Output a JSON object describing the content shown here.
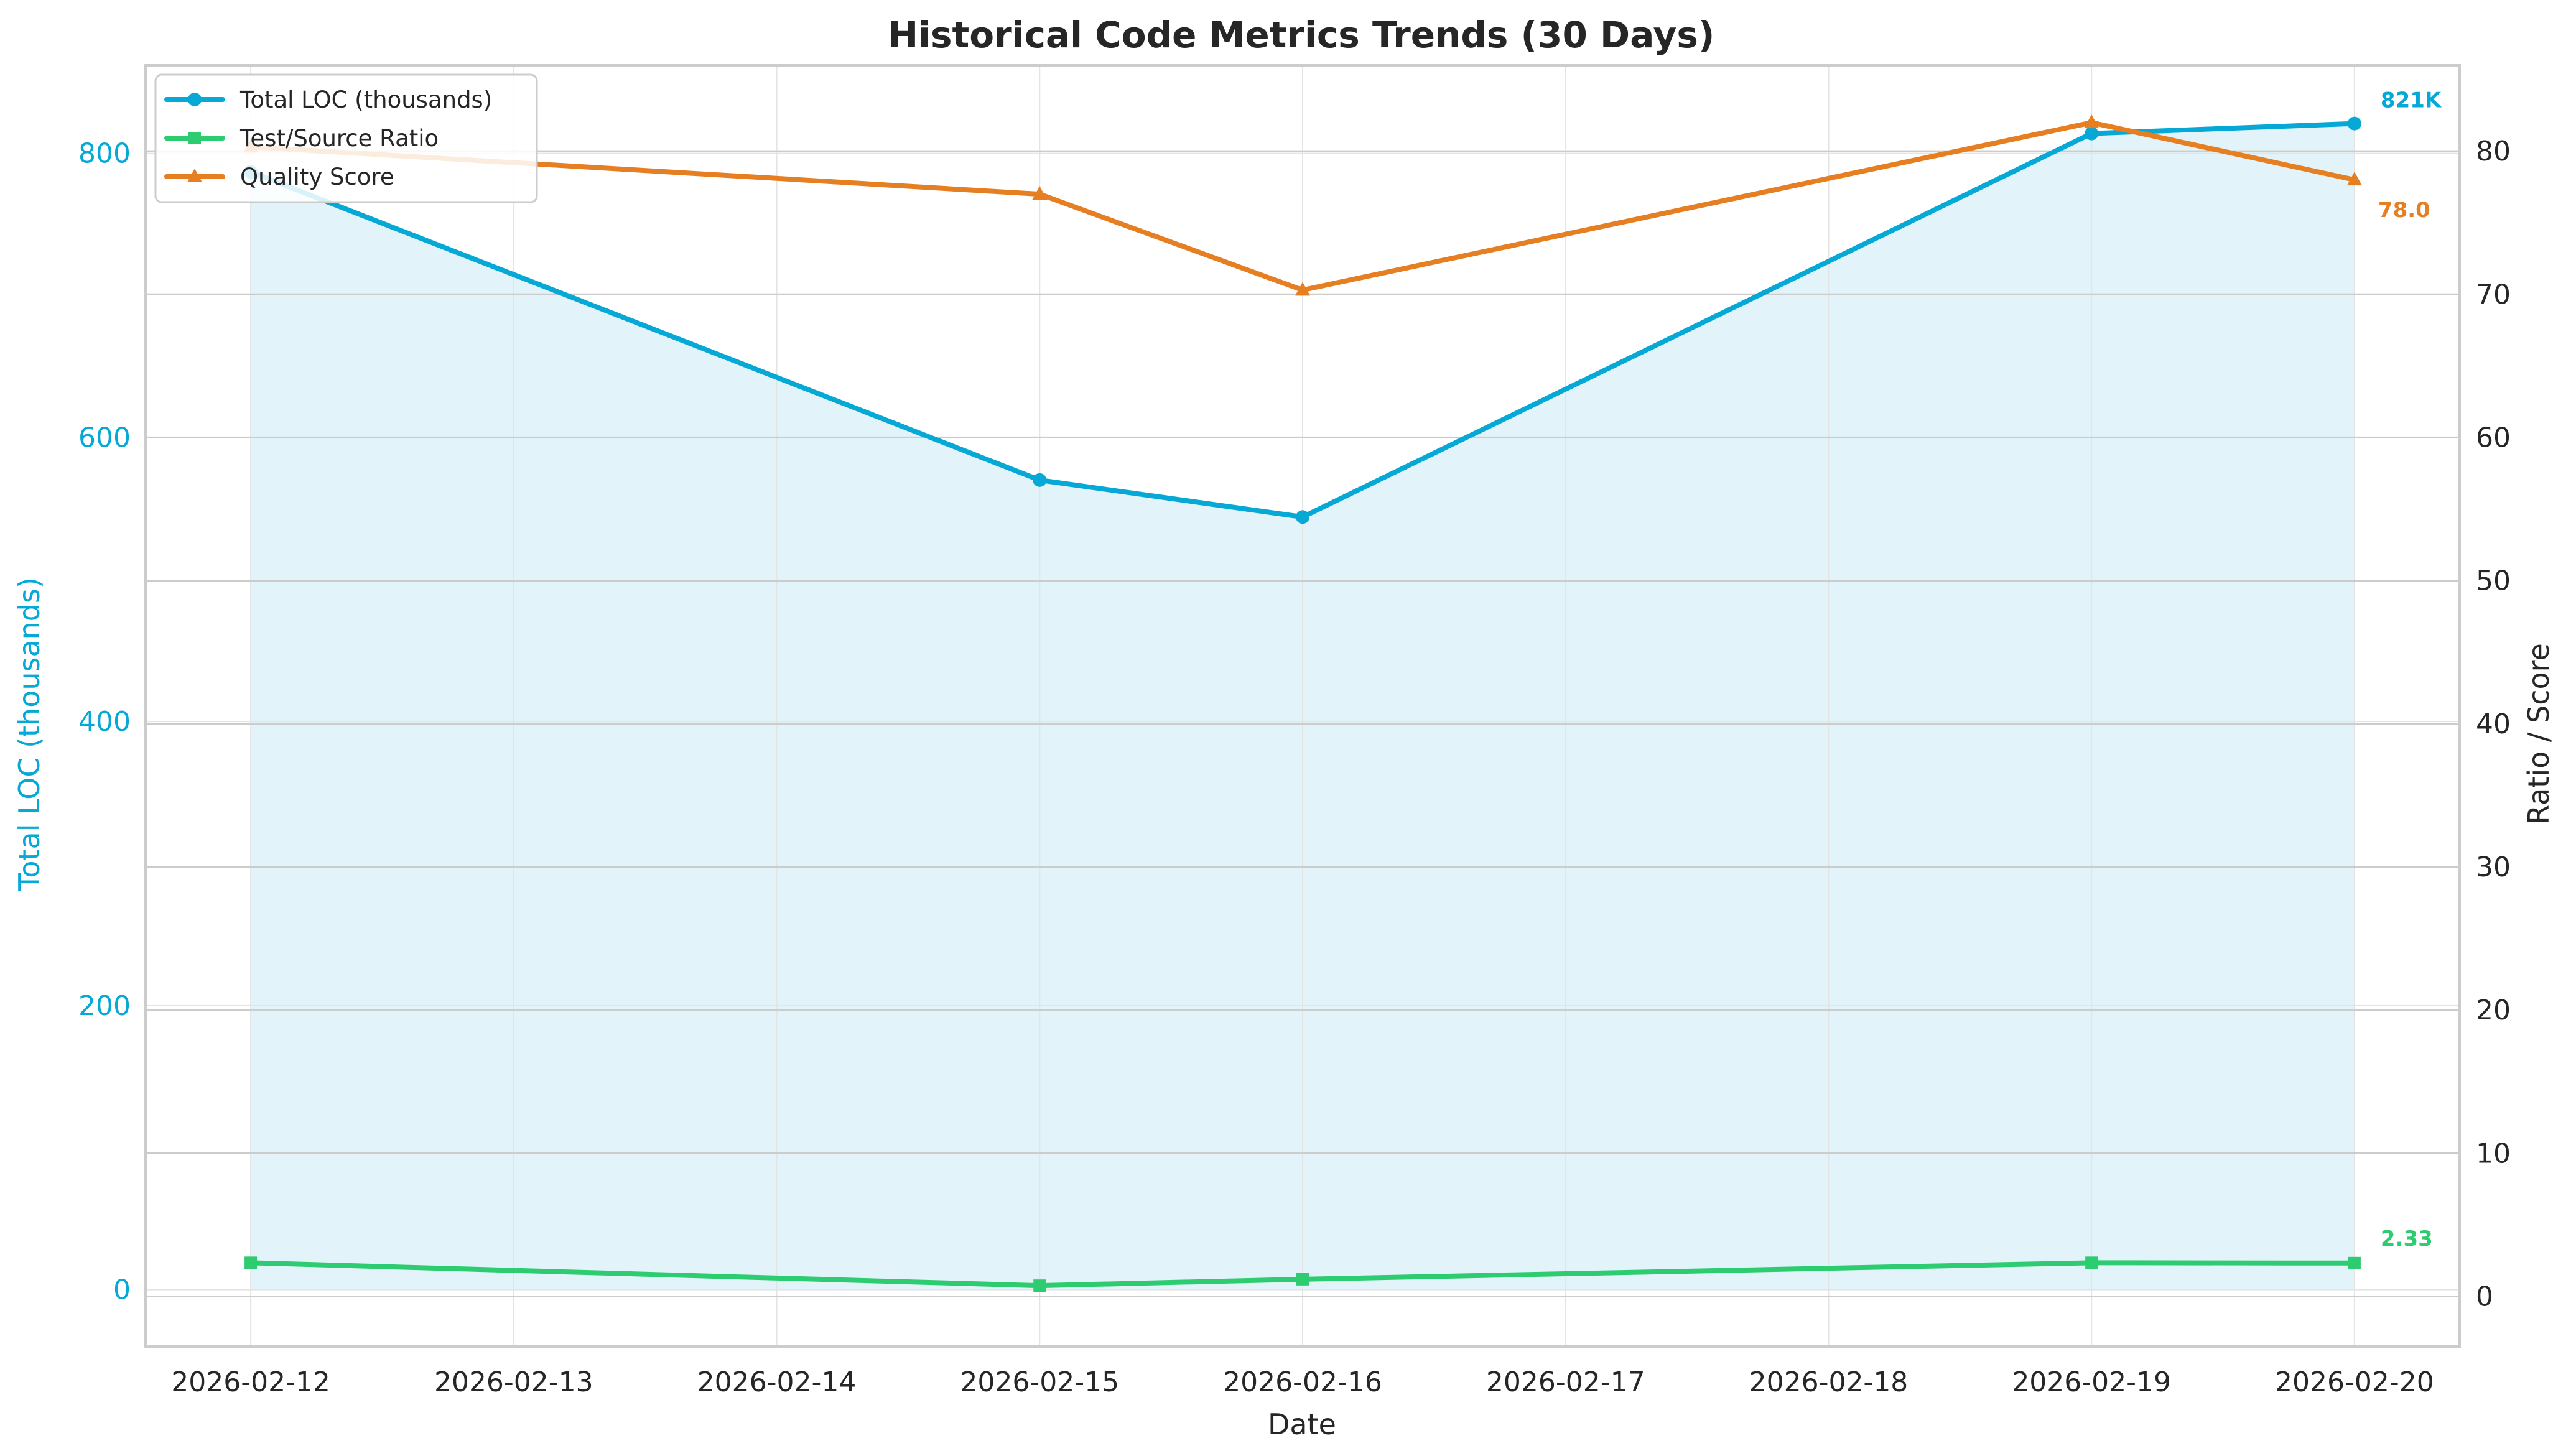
{
  "chart_data": {
    "type": "line",
    "title": "Historical Code Metrics Trends (30 Days)",
    "xlabel": "Date",
    "ylabel_left": "Total LOC (thousands)",
    "ylabel_right": "Ratio / Score",
    "x_ticks": [
      "2026-02-12",
      "2026-02-13",
      "2026-02-14",
      "2026-02-15",
      "2026-02-16",
      "2026-02-17",
      "2026-02-18",
      "2026-02-19",
      "2026-02-20"
    ],
    "x_range": [
      -0.4,
      8.4
    ],
    "ylim_left": [
      -40,
      862
    ],
    "yticks_left": [
      0,
      200,
      400,
      600,
      800
    ],
    "ylim_right": [
      -3.5,
      86
    ],
    "yticks_right": [
      0,
      10,
      20,
      30,
      40,
      50,
      60,
      70,
      80
    ],
    "grid": true,
    "legend_position": "top-left",
    "series": [
      {
        "name": "Total LOC (thousands)",
        "axis": "left",
        "color": "#06a9d6",
        "marker": "circle",
        "fill": true,
        "points": [
          {
            "x": 0,
            "y": 787
          },
          {
            "x": 3,
            "y": 570
          },
          {
            "x": 4,
            "y": 544
          },
          {
            "x": 7,
            "y": 814
          },
          {
            "x": 8,
            "y": 821
          }
        ],
        "end_label": "821K"
      },
      {
        "name": "Test/Source Ratio",
        "axis": "right",
        "color": "#2ecc71",
        "marker": "square",
        "fill": false,
        "points": [
          {
            "x": 0,
            "y": 2.35
          },
          {
            "x": 3,
            "y": 0.75
          },
          {
            "x": 4,
            "y": 1.2
          },
          {
            "x": 7,
            "y": 2.35
          },
          {
            "x": 8,
            "y": 2.33
          }
        ],
        "end_label": "2.33"
      },
      {
        "name": "Quality Score",
        "axis": "right",
        "color": "#e67e22",
        "marker": "triangle",
        "fill": false,
        "points": [
          {
            "x": 0,
            "y": 80.3
          },
          {
            "x": 3,
            "y": 77
          },
          {
            "x": 4,
            "y": 70.3
          },
          {
            "x": 7,
            "y": 82
          },
          {
            "x": 8,
            "y": 78
          }
        ],
        "end_label": "78.0"
      }
    ]
  },
  "colors": {
    "left_axis": "#06a9d6",
    "right_axis": "#262626",
    "text": "#262626",
    "spine": "#cccccc",
    "grid": "#cccccc",
    "fill": "#e2f4f9"
  }
}
